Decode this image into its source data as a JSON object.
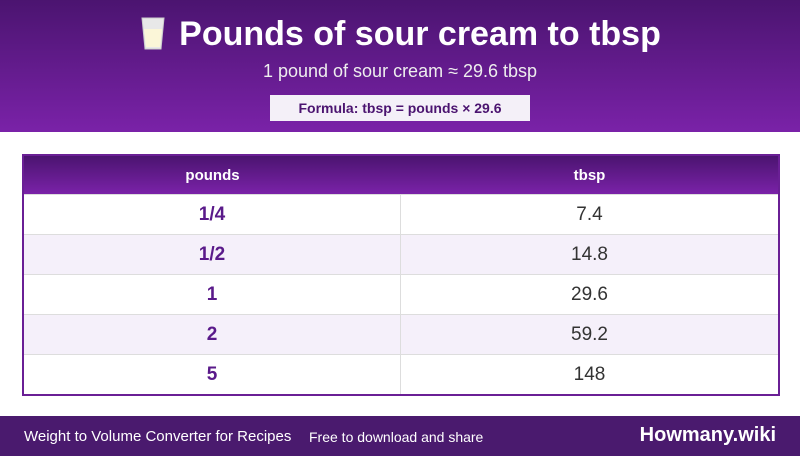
{
  "header": {
    "title": "Pounds of sour cream to tbsp",
    "subtitle": "1 pound of sour cream ≈ 29.6 tbsp",
    "formula": "Formula: tbsp = pounds × 29.6"
  },
  "table": {
    "columns": [
      "pounds",
      "tbsp"
    ],
    "rows": [
      [
        "1/4",
        "7.4"
      ],
      [
        "1/2",
        "14.8"
      ],
      [
        "1",
        "29.6"
      ],
      [
        "2",
        "59.2"
      ],
      [
        "5",
        "148"
      ]
    ]
  },
  "footer": {
    "left": "Weight to Volume Converter for Recipes",
    "middle": "Free to download and share",
    "brand": "Howmany.wiki"
  }
}
